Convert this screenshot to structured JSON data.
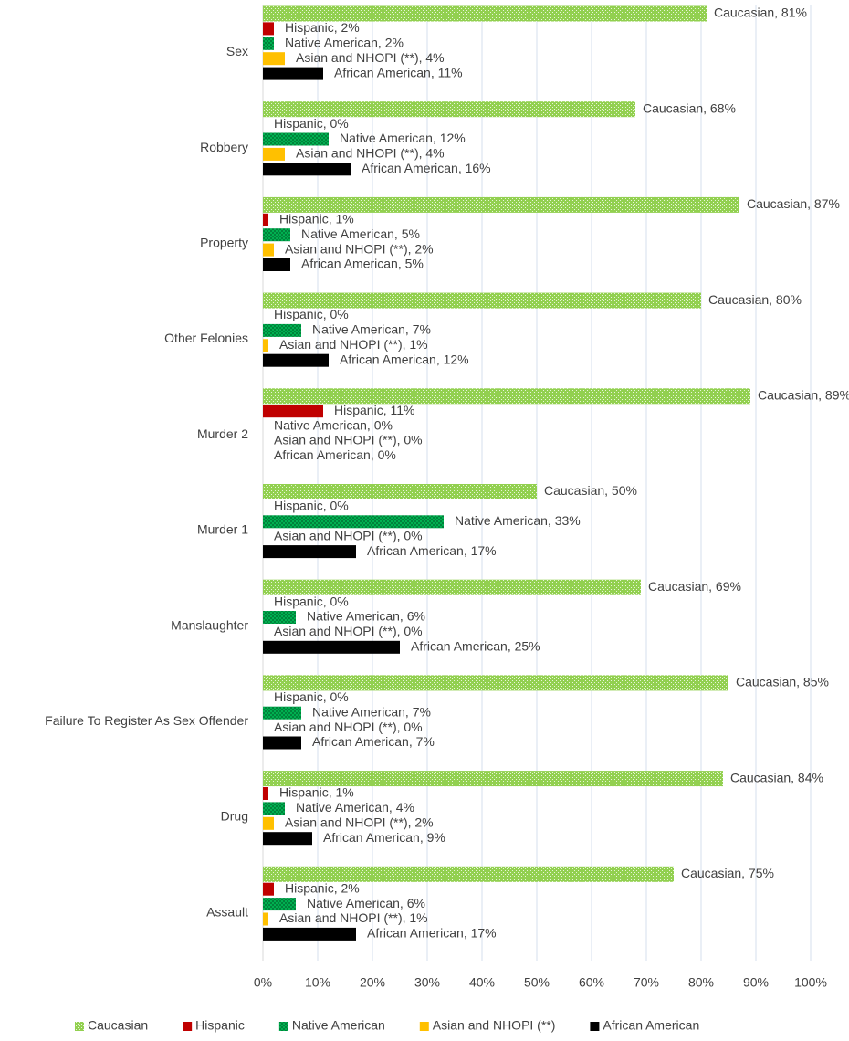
{
  "chart_data": {
    "type": "hbar",
    "categories": [
      "Sex",
      "Robbery",
      "Property",
      "Other Felonies",
      "Murder 2",
      "Murder 1",
      "Manslaughter",
      "Failure To Register As Sex Offender",
      "Drug",
      "Assault"
    ],
    "series": [
      {
        "name": "Caucasian",
        "color": "#92d050",
        "pattern": "dots",
        "values": [
          81,
          68,
          87,
          80,
          89,
          50,
          69,
          85,
          84,
          75
        ],
        "value_labels": [
          "Caucasian, 81%",
          "Caucasian, 68%",
          "Caucasian, 87%",
          "Caucasian, 80%",
          "Caucasian, 89%",
          "Caucasian, 50%",
          "Caucasian, 69%",
          "Caucasian, 85%",
          "Caucasian, 84%",
          "Caucasian, 75%"
        ]
      },
      {
        "name": "Hispanic",
        "color": "#c00000",
        "values": [
          2,
          0,
          1,
          0,
          11,
          0,
          0,
          0,
          1,
          2
        ],
        "value_labels": [
          "Hispanic, 2%",
          "Hispanic, 0%",
          "Hispanic, 1%",
          "Hispanic, 0%",
          "Hispanic, 11%",
          "Hispanic, 0%",
          "Hispanic, 0%",
          "Hispanic, 0%",
          "Hispanic, 1%",
          "Hispanic, 2%"
        ]
      },
      {
        "name": "Native American",
        "color": "#00b050",
        "pattern": "checker",
        "values": [
          2,
          12,
          5,
          7,
          0,
          33,
          6,
          7,
          4,
          6
        ],
        "value_labels": [
          "Native American, 2%",
          "Native American, 12%",
          "Native American, 5%",
          "Native American, 7%",
          "Native American, 0%",
          "Native American, 33%",
          "Native American, 6%",
          "Native American, 7%",
          "Native American, 4%",
          "Native American, 6%"
        ]
      },
      {
        "name": "Asian and NHOPI (**)",
        "color": "#ffc000",
        "values": [
          4,
          4,
          2,
          1,
          0,
          0,
          0,
          0,
          2,
          1
        ],
        "value_labels": [
          "Asian and NHOPI (**), 4%",
          "Asian and NHOPI (**), 4%",
          "Asian and NHOPI (**), 2%",
          "Asian and NHOPI (**), 1%",
          "Asian and NHOPI (**), 0%",
          "Asian and NHOPI (**), 0%",
          "Asian and NHOPI (**), 0%",
          "Asian and NHOPI (**), 0%",
          "Asian and NHOPI (**), 2%",
          "Asian and NHOPI (**), 1%"
        ]
      },
      {
        "name": "African American",
        "color": "#000000",
        "values": [
          11,
          16,
          5,
          12,
          0,
          17,
          25,
          7,
          9,
          17
        ],
        "value_labels": [
          "African American, 11%",
          "African American, 16%",
          "African American, 5%",
          "African American, 12%",
          "African American, 0%",
          "African American, 17%",
          "African American, 25%",
          "African American, 7%",
          "African American, 9%",
          "African American, 17%"
        ]
      }
    ],
    "xlim": [
      0,
      100
    ],
    "xticks": [
      {
        "value": 0,
        "label": "0%"
      },
      {
        "value": 10,
        "label": "10%"
      },
      {
        "value": 20,
        "label": "20%"
      },
      {
        "value": 30,
        "label": "30%"
      },
      {
        "value": 40,
        "label": "40%"
      },
      {
        "value": 50,
        "label": "50%"
      },
      {
        "value": 60,
        "label": "60%"
      },
      {
        "value": 70,
        "label": "70%"
      },
      {
        "value": 80,
        "label": "80%"
      },
      {
        "value": 90,
        "label": "90%"
      },
      {
        "value": 100,
        "label": "100%"
      }
    ],
    "grid": true,
    "legend": "bottom"
  }
}
